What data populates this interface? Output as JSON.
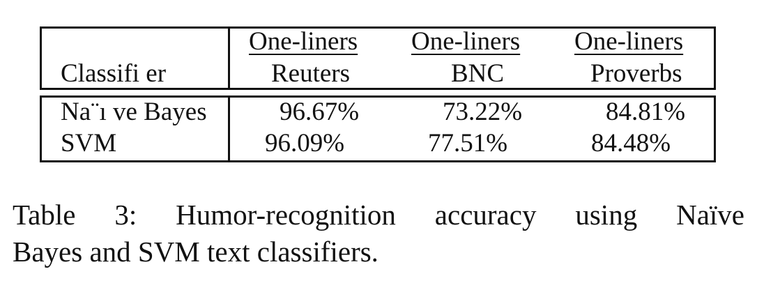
{
  "table": {
    "header": {
      "classifier_label": "Classifi er",
      "columns": [
        {
          "top": "One-liners",
          "bottom": "Reuters"
        },
        {
          "top": "One-liners",
          "bottom": "BNC"
        },
        {
          "top": "One-liners",
          "bottom": "Proverbs"
        }
      ]
    },
    "rows": [
      {
        "classifier": "Na¨ı ve Bayes",
        "values": [
          "96.67%",
          "73.22%",
          "84.81%"
        ]
      },
      {
        "classifier": "SVM",
        "values": [
          "96.09%",
          "77.51%",
          "84.48%"
        ]
      }
    ]
  },
  "caption": {
    "line1": "Table 3: Humor-recognition accuracy using Naïve",
    "line2": "Bayes and SVM text classifiers."
  }
}
